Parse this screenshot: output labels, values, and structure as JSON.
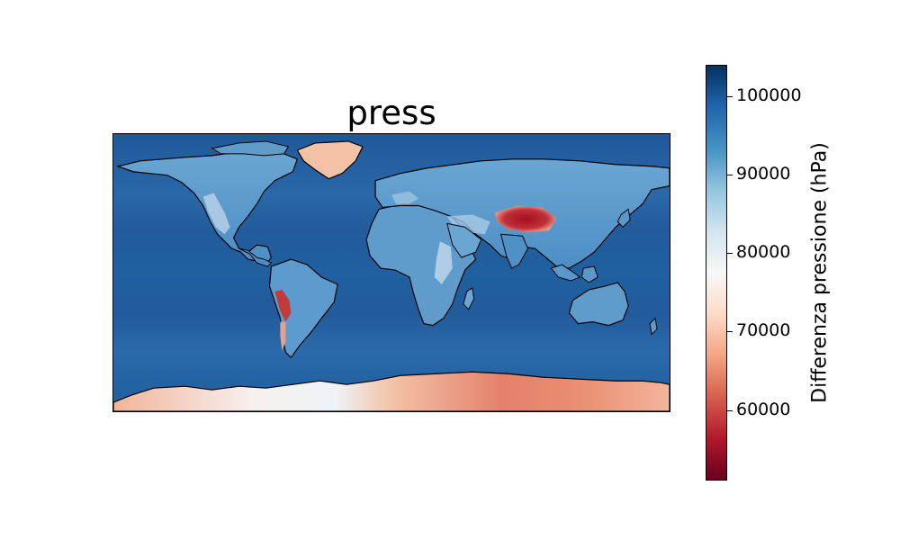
{
  "title": "press",
  "colorbar": {
    "label": "Differenza pressione (hPa)",
    "ticks": [
      "60000",
      "70000",
      "80000",
      "90000",
      "100000"
    ],
    "range": [
      51000,
      104000
    ],
    "colormap": "RdBu",
    "colors": [
      "#67001f",
      "#b2182b",
      "#d6604d",
      "#f4a582",
      "#fddbc7",
      "#f7f7f7",
      "#d1e5f0",
      "#92c5de",
      "#4393c3",
      "#2166ac",
      "#053061"
    ]
  },
  "map": {
    "projection": "PlateCarree",
    "ocean_color": "#235d9c",
    "coastline_color": "#000000"
  }
}
